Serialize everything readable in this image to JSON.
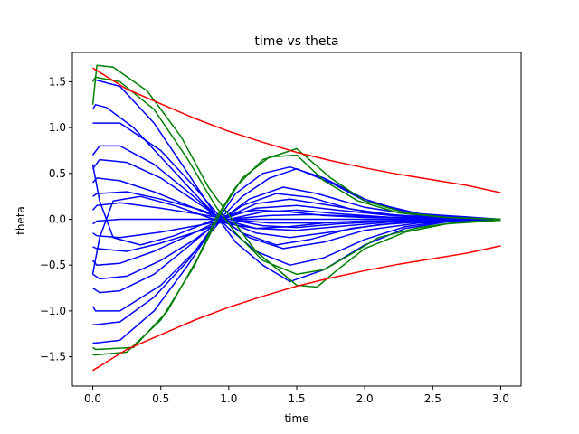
{
  "chart_data": {
    "type": "line",
    "title": "time vs theta",
    "xlabel": "time",
    "ylabel": "theta",
    "xlim": [
      -0.15,
      3.15
    ],
    "ylim": [
      -1.82,
      1.82
    ],
    "xticks": [
      0.0,
      0.5,
      1.0,
      1.5,
      2.0,
      2.5,
      3.0
    ],
    "xtick_labels": [
      "0.0",
      "0.5",
      "1.0",
      "1.5",
      "2.0",
      "2.5",
      "3.0"
    ],
    "yticks": [
      -1.5,
      -1.0,
      -0.5,
      0.0,
      0.5,
      1.0,
      1.5
    ],
    "ytick_labels": [
      "−1.5",
      "−1.0",
      "−0.5",
      "0.0",
      "0.5",
      "1.0",
      "1.5"
    ],
    "grid": false,
    "colors": {
      "bound": "#ff0000",
      "highlight": "#008000",
      "trajectory": "#0000ff"
    },
    "series": [
      {
        "color": "#ff0000",
        "x": [
          0,
          0.25,
          0.5,
          0.75,
          1.0,
          1.25,
          1.5,
          1.75,
          2.0,
          2.25,
          2.5,
          2.75,
          3.0
        ],
        "y": [
          1.65,
          1.42,
          1.26,
          1.1,
          0.96,
          0.84,
          0.73,
          0.64,
          0.56,
          0.49,
          0.43,
          0.37,
          0.29
        ]
      },
      {
        "color": "#ff0000",
        "x": [
          0,
          0.25,
          0.5,
          0.75,
          1.0,
          1.25,
          1.5,
          1.75,
          2.0,
          2.25,
          2.5,
          2.75,
          3.0
        ],
        "y": [
          -1.65,
          -1.42,
          -1.26,
          -1.1,
          -0.96,
          -0.84,
          -0.73,
          -0.64,
          -0.56,
          -0.49,
          -0.43,
          -0.37,
          -0.29
        ]
      },
      {
        "color": "#008000",
        "x": [
          0,
          0.03,
          0.15,
          0.4,
          0.65,
          0.85,
          1.0,
          1.2,
          1.5,
          1.65,
          1.8,
          2.0,
          2.3,
          2.6,
          3.0
        ],
        "y": [
          1.25,
          1.68,
          1.66,
          1.4,
          0.9,
          0.35,
          0.05,
          -0.35,
          -0.72,
          -0.74,
          -0.55,
          -0.32,
          -0.14,
          -0.05,
          -0.01
        ]
      },
      {
        "color": "#008000",
        "x": [
          0,
          0.02,
          0.2,
          0.45,
          0.7,
          0.9,
          1.05,
          1.25,
          1.5,
          1.7,
          1.9,
          2.1,
          2.4,
          2.7,
          3.0
        ],
        "y": [
          1.5,
          1.55,
          1.5,
          1.2,
          0.65,
          0.15,
          -0.15,
          -0.45,
          -0.6,
          -0.55,
          -0.38,
          -0.2,
          -0.09,
          -0.03,
          -0.01
        ]
      },
      {
        "color": "#008000",
        "x": [
          0,
          0.02,
          0.25,
          0.5,
          0.75,
          0.9,
          1.05,
          1.25,
          1.5,
          1.75,
          2.0,
          2.3,
          2.6,
          3.0
        ],
        "y": [
          -1.48,
          -1.48,
          -1.45,
          -1.1,
          -0.5,
          0.0,
          0.35,
          0.65,
          0.77,
          0.45,
          0.2,
          0.07,
          0.02,
          0.0
        ]
      },
      {
        "color": "#008000",
        "x": [
          0,
          0.02,
          0.3,
          0.55,
          0.8,
          0.95,
          1.1,
          1.3,
          1.5,
          1.7,
          1.95,
          2.25,
          2.6,
          3.0
        ],
        "y": [
          -1.4,
          -1.42,
          -1.4,
          -1.0,
          -0.35,
          0.1,
          0.45,
          0.68,
          0.7,
          0.42,
          0.2,
          0.07,
          0.02,
          0.0
        ]
      },
      {
        "color": "#0000ff",
        "x": [
          0,
          0.02,
          0.2,
          0.45,
          0.7,
          0.9,
          1.05,
          1.25,
          1.45,
          1.7,
          2.0,
          2.3,
          2.6,
          3.0
        ],
        "y": [
          1.52,
          1.52,
          1.45,
          1.05,
          0.5,
          0.05,
          -0.25,
          -0.5,
          -0.68,
          -0.55,
          -0.28,
          -0.1,
          -0.03,
          0.0
        ]
      },
      {
        "color": "#0000ff",
        "x": [
          0,
          0.02,
          0.1,
          0.3,
          0.55,
          0.8,
          1.0,
          1.2,
          1.45,
          1.7,
          2.0,
          2.3,
          2.6,
          3.0
        ],
        "y": [
          1.2,
          1.25,
          1.22,
          1.0,
          0.6,
          0.2,
          -0.1,
          -0.35,
          -0.5,
          -0.42,
          -0.22,
          -0.08,
          -0.02,
          0.0
        ]
      },
      {
        "color": "#0000ff",
        "x": [
          0,
          0.02,
          0.2,
          0.5,
          0.75,
          0.95,
          1.15,
          1.4,
          1.7,
          2.0,
          2.4,
          3.0
        ],
        "y": [
          1.05,
          1.05,
          1.05,
          0.75,
          0.35,
          0.0,
          -0.2,
          -0.32,
          -0.25,
          -0.12,
          -0.04,
          0.0
        ]
      },
      {
        "color": "#0000ff",
        "x": [
          0,
          0.05,
          0.2,
          0.45,
          0.7,
          0.9,
          1.1,
          1.35,
          1.6,
          1.9,
          2.3,
          3.0
        ],
        "y": [
          0.7,
          0.8,
          0.8,
          0.6,
          0.3,
          0.05,
          -0.15,
          -0.28,
          -0.22,
          -0.1,
          -0.03,
          0.0
        ]
      },
      {
        "color": "#0000ff",
        "x": [
          0,
          0.05,
          0.25,
          0.5,
          0.75,
          0.95,
          1.2,
          1.45,
          1.75,
          2.1,
          2.5,
          3.0
        ],
        "y": [
          0.55,
          0.65,
          0.62,
          0.45,
          0.2,
          0.0,
          -0.15,
          -0.2,
          -0.14,
          -0.06,
          -0.02,
          0.0
        ]
      },
      {
        "color": "#0000ff",
        "x": [
          0,
          0.03,
          0.2,
          0.45,
          0.7,
          0.95,
          1.2,
          1.5,
          1.8,
          2.2,
          2.6,
          3.0
        ],
        "y": [
          0.4,
          0.45,
          0.42,
          0.3,
          0.15,
          0.0,
          -0.1,
          -0.12,
          -0.08,
          -0.03,
          -0.01,
          0.0
        ]
      },
      {
        "color": "#0000ff",
        "x": [
          0,
          0.03,
          0.25,
          0.5,
          0.8,
          1.0,
          1.25,
          1.5,
          1.8,
          2.2,
          2.6,
          3.0
        ],
        "y": [
          0.25,
          0.28,
          0.3,
          0.22,
          0.1,
          0.0,
          -0.07,
          -0.09,
          -0.05,
          -0.02,
          -0.01,
          0.0
        ]
      },
      {
        "color": "#0000ff",
        "x": [
          0,
          0.03,
          0.2,
          0.5,
          0.8,
          1.0,
          1.3,
          1.6,
          2.0,
          2.5,
          3.0
        ],
        "y": [
          0.1,
          0.15,
          0.18,
          0.12,
          0.05,
          0.0,
          -0.04,
          -0.04,
          -0.02,
          -0.01,
          0.0
        ]
      },
      {
        "color": "#0000ff",
        "x": [
          0,
          0.03,
          0.2,
          0.5,
          0.8,
          1.0,
          1.3,
          1.6,
          2.0,
          2.5,
          3.0
        ],
        "y": [
          -0.05,
          -0.02,
          0.0,
          0.0,
          0.0,
          0.0,
          0.0,
          0.0,
          0.0,
          0.0,
          0.0
        ]
      },
      {
        "color": "#0000ff",
        "x": [
          0,
          0.03,
          0.2,
          0.5,
          0.8,
          1.0,
          1.3,
          1.6,
          2.0,
          2.5,
          3.0
        ],
        "y": [
          -0.15,
          -0.18,
          -0.2,
          -0.14,
          -0.06,
          0.0,
          0.04,
          0.05,
          0.03,
          0.01,
          0.0
        ]
      },
      {
        "color": "#0000ff",
        "x": [
          0,
          0.03,
          0.25,
          0.5,
          0.8,
          1.0,
          1.25,
          1.5,
          1.8,
          2.2,
          2.6,
          3.0
        ],
        "y": [
          -0.3,
          -0.32,
          -0.35,
          -0.26,
          -0.12,
          0.0,
          0.08,
          0.1,
          0.06,
          0.02,
          0.01,
          0.0
        ]
      },
      {
        "color": "#0000ff",
        "x": [
          0,
          0.03,
          0.2,
          0.45,
          0.7,
          0.95,
          1.2,
          1.5,
          1.8,
          2.2,
          2.6,
          3.0
        ],
        "y": [
          -0.45,
          -0.5,
          -0.48,
          -0.35,
          -0.18,
          0.0,
          0.12,
          0.15,
          0.1,
          0.04,
          0.01,
          0.0
        ]
      },
      {
        "color": "#0000ff",
        "x": [
          0,
          0.05,
          0.25,
          0.5,
          0.75,
          0.95,
          1.2,
          1.45,
          1.75,
          2.1,
          2.5,
          3.0
        ],
        "y": [
          -0.6,
          -0.65,
          -0.62,
          -0.45,
          -0.22,
          0.0,
          0.17,
          0.22,
          0.15,
          0.06,
          0.02,
          0.0
        ]
      },
      {
        "color": "#0000ff",
        "x": [
          0,
          0.05,
          0.2,
          0.45,
          0.7,
          0.9,
          1.1,
          1.35,
          1.6,
          1.9,
          2.3,
          3.0
        ],
        "y": [
          -0.75,
          -0.8,
          -0.78,
          -0.6,
          -0.3,
          -0.05,
          0.15,
          0.28,
          0.24,
          0.11,
          0.03,
          0.0
        ]
      },
      {
        "color": "#0000ff",
        "x": [
          0,
          0.02,
          0.2,
          0.5,
          0.75,
          0.95,
          1.15,
          1.4,
          1.65,
          2.0,
          2.4,
          3.0
        ],
        "y": [
          -0.95,
          -1.0,
          -1.0,
          -0.72,
          -0.35,
          0.0,
          0.22,
          0.35,
          0.28,
          0.13,
          0.04,
          0.0
        ]
      },
      {
        "color": "#0000ff",
        "x": [
          0,
          0.02,
          0.2,
          0.45,
          0.7,
          0.9,
          1.1,
          1.3,
          1.5,
          1.75,
          2.0,
          2.4,
          3.0
        ],
        "y": [
          -1.15,
          -1.15,
          -1.12,
          -0.85,
          -0.45,
          -0.05,
          0.25,
          0.45,
          0.55,
          0.4,
          0.2,
          0.06,
          0.0
        ]
      },
      {
        "color": "#0000ff",
        "x": [
          0,
          0.02,
          0.2,
          0.45,
          0.7,
          0.9,
          1.05,
          1.25,
          1.45,
          1.7,
          2.0,
          2.3,
          2.6,
          3.0
        ],
        "y": [
          -1.35,
          -1.35,
          -1.32,
          -1.0,
          -0.5,
          -0.05,
          0.28,
          0.5,
          0.57,
          0.45,
          0.22,
          0.08,
          0.02,
          0.0
        ]
      },
      {
        "color": "#0000ff",
        "x": [
          0,
          0.05,
          0.15,
          0.35,
          0.6,
          0.85,
          1.0,
          1.2,
          1.45,
          1.7,
          2.0,
          2.4,
          3.0
        ],
        "y": [
          -0.6,
          -0.2,
          0.2,
          0.25,
          0.15,
          0.02,
          -0.05,
          -0.1,
          -0.08,
          -0.04,
          -0.02,
          -0.01,
          0.0
        ]
      },
      {
        "color": "#0000ff",
        "x": [
          0,
          0.05,
          0.15,
          0.35,
          0.6,
          0.85,
          1.0,
          1.2,
          1.45,
          1.7,
          2.0,
          2.4,
          3.0
        ],
        "y": [
          0.6,
          0.2,
          -0.2,
          -0.28,
          -0.18,
          -0.03,
          0.05,
          0.1,
          0.08,
          0.04,
          0.02,
          0.01,
          0.0
        ]
      }
    ]
  }
}
